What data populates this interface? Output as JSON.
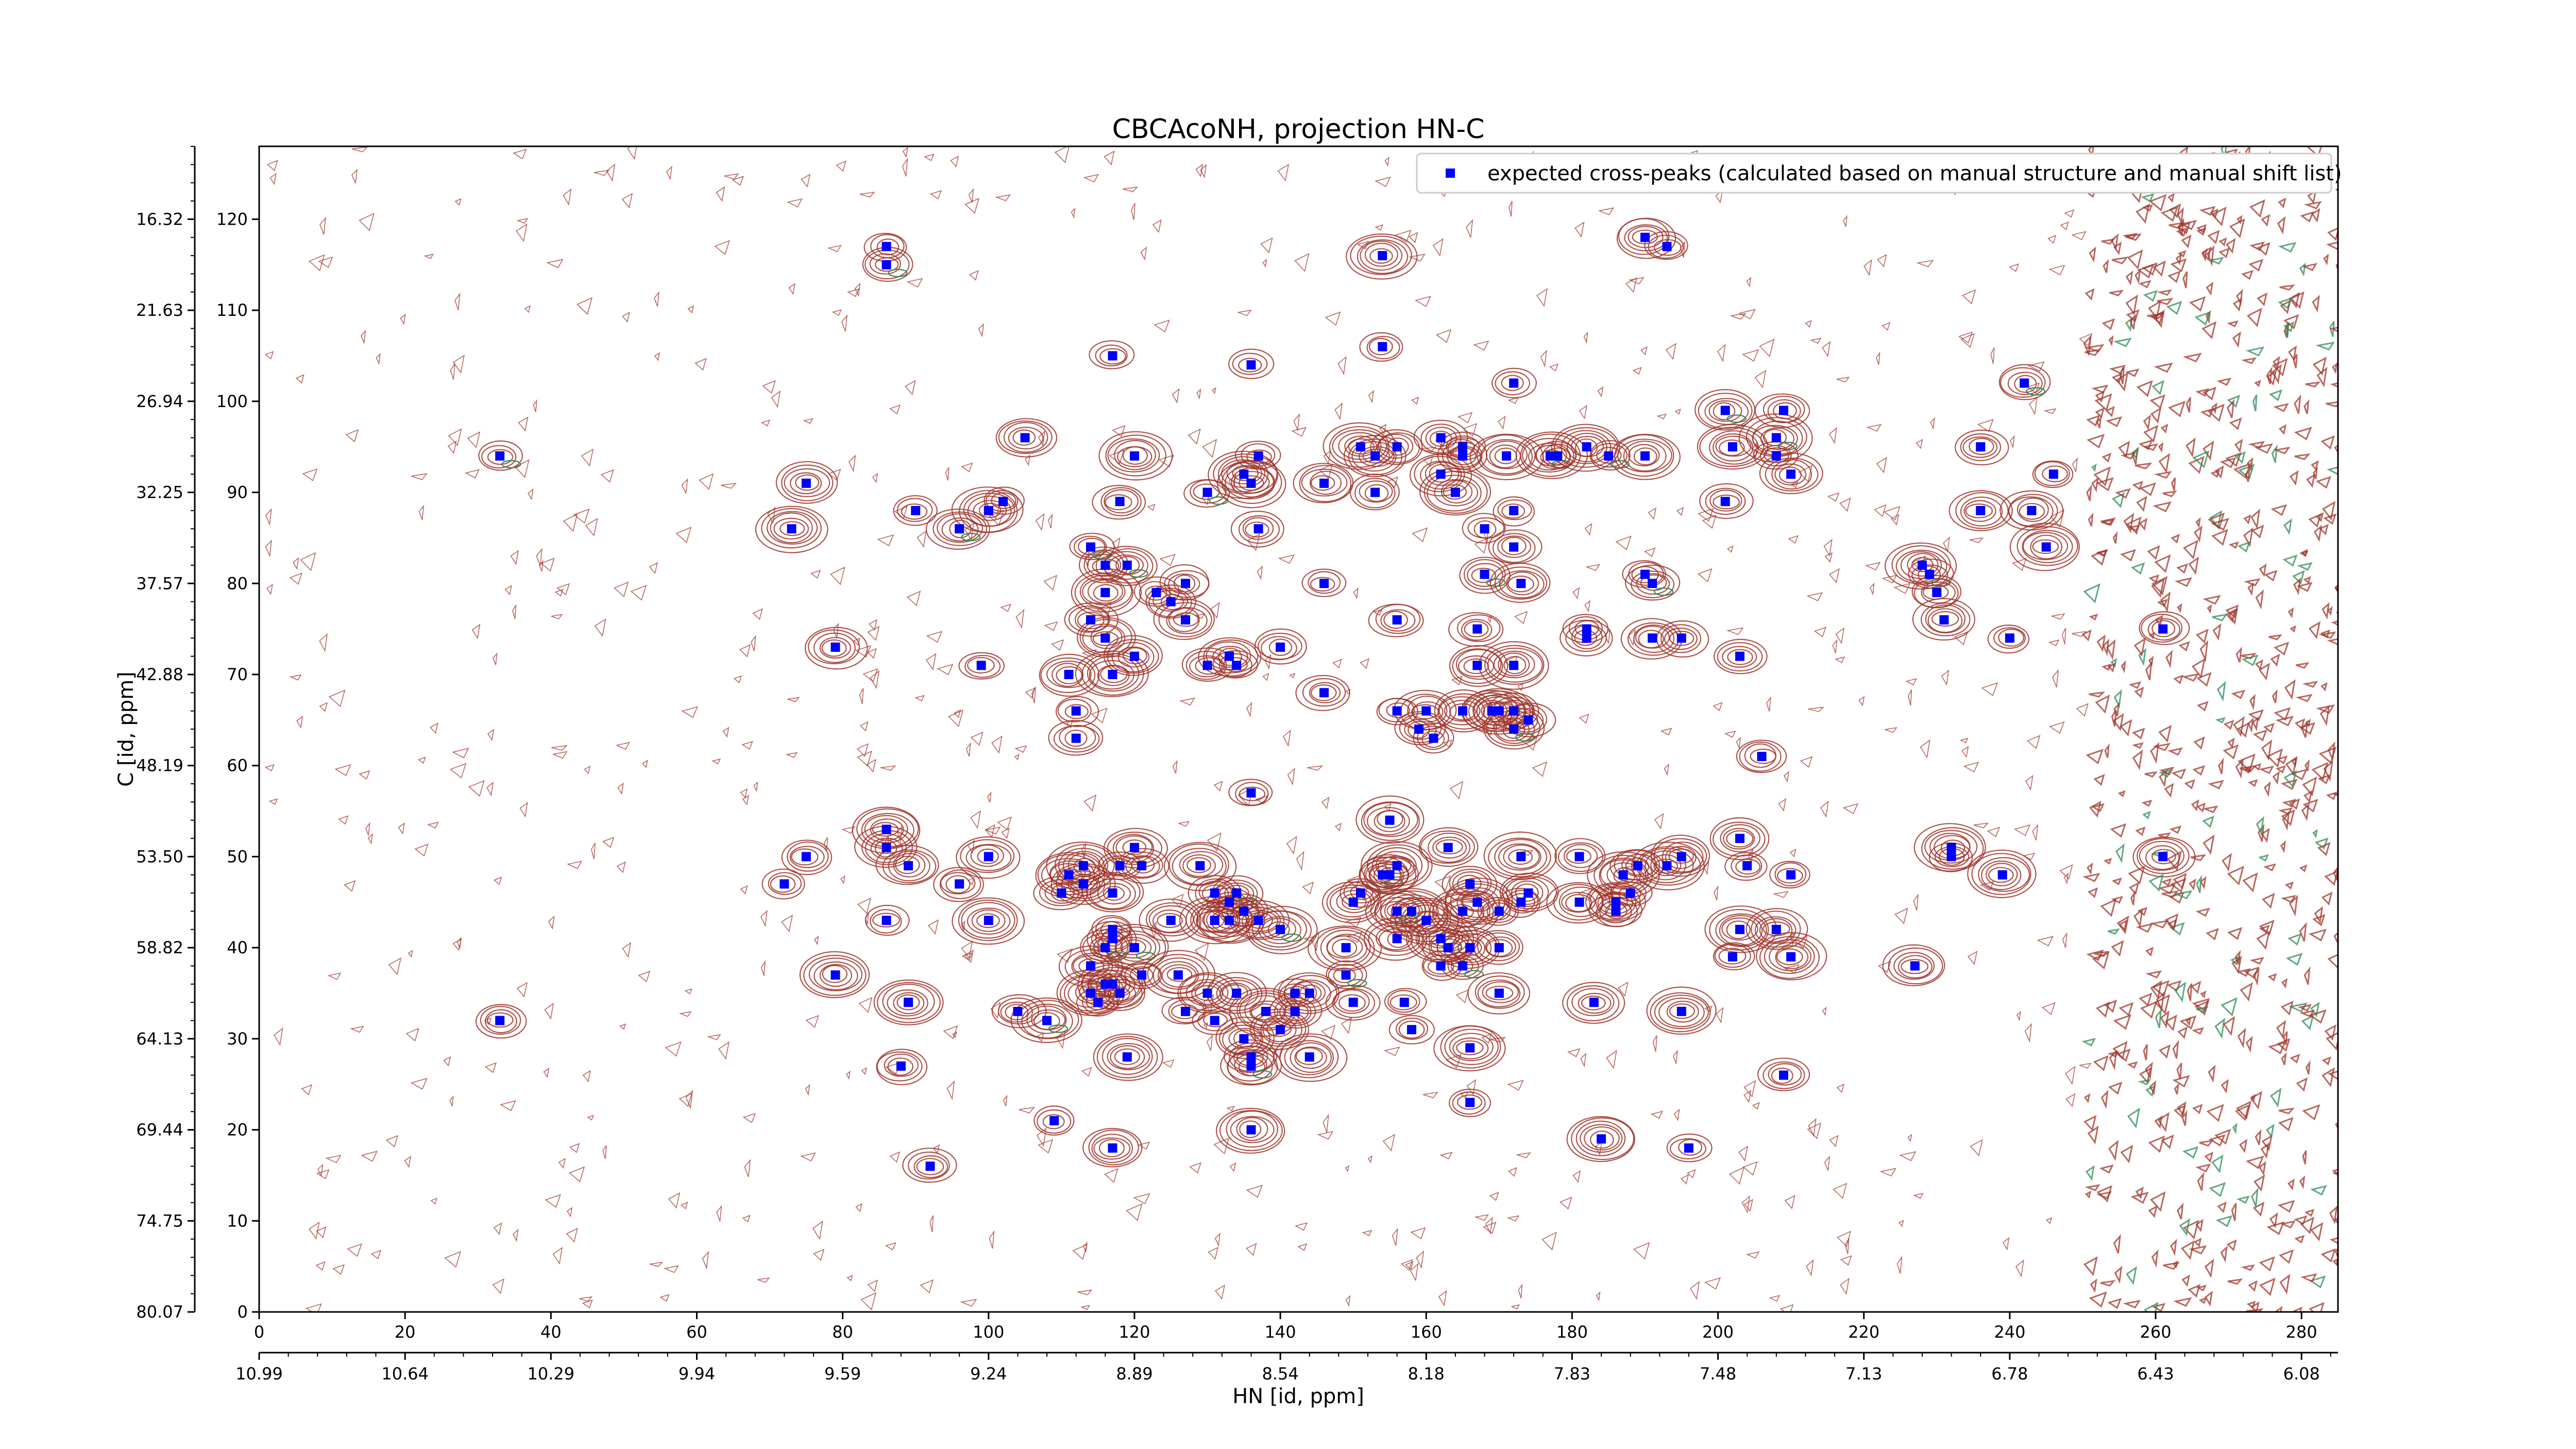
{
  "chart_data": {
    "type": "scatter",
    "title": "CBCAcoNH, projection HN-C",
    "xlabel": "HN [id, ppm]",
    "ylabel": "C [id, ppm]",
    "xlim": [
      0,
      285
    ],
    "ylim": [
      0,
      128
    ],
    "x_ticks": [
      "0",
      "20",
      "40",
      "60",
      "80",
      "100",
      "120",
      "140",
      "160",
      "180",
      "200",
      "220",
      "240",
      "260",
      "280"
    ],
    "x_ppm_ticks": [
      "10.99",
      "10.64",
      "10.29",
      "9.94",
      "9.59",
      "9.24",
      "8.89",
      "8.54",
      "8.18",
      "7.83",
      "7.48",
      "7.13",
      "6.78",
      "6.43",
      "6.08"
    ],
    "y_ticks": [
      "0",
      "10",
      "20",
      "30",
      "40",
      "50",
      "60",
      "70",
      "80",
      "90",
      "100",
      "110",
      "120"
    ],
    "y_ppm_ticks": [
      "80.07",
      "74.75",
      "69.44",
      "64.13",
      "58.82",
      "53.50",
      "48.19",
      "42.88",
      "37.57",
      "32.25",
      "26.94",
      "21.63",
      "16.32"
    ],
    "legend": {
      "position": "top-right",
      "label": "expected cross-peaks (calculated based on manual structure and manual shift list)"
    },
    "grid": false,
    "colors": {
      "peak": "#0000ff",
      "contour_positive": "#a0342a",
      "contour_negative": "#2e8b57"
    },
    "series": [
      {
        "name": "expected cross-peaks (calculated based on manual structure and manual shift list)",
        "points": [
          [
            33,
            94
          ],
          [
            33,
            32
          ],
          [
            75,
            91
          ],
          [
            73,
            86
          ],
          [
            72,
            47
          ],
          [
            75,
            50
          ],
          [
            79,
            73
          ],
          [
            79,
            37
          ],
          [
            86,
            117
          ],
          [
            86,
            115
          ],
          [
            86,
            51
          ],
          [
            86,
            53
          ],
          [
            86,
            43
          ],
          [
            88,
            27
          ],
          [
            89,
            49
          ],
          [
            89,
            34
          ],
          [
            90,
            88
          ],
          [
            92,
            16
          ],
          [
            96,
            86
          ],
          [
            100,
            88
          ],
          [
            102,
            89
          ],
          [
            96,
            47
          ],
          [
            100,
            50
          ],
          [
            100,
            43
          ],
          [
            99,
            71
          ],
          [
            104,
            33
          ],
          [
            105,
            96
          ],
          [
            108,
            32
          ],
          [
            109,
            21
          ],
          [
            110,
            46
          ],
          [
            111,
            70
          ],
          [
            111,
            48
          ],
          [
            112,
            66
          ],
          [
            112,
            63
          ],
          [
            113,
            47
          ],
          [
            113,
            49
          ],
          [
            114,
            84
          ],
          [
            114,
            76
          ],
          [
            114,
            38
          ],
          [
            114,
            35
          ],
          [
            115,
            34
          ],
          [
            116,
            82
          ],
          [
            116,
            74
          ],
          [
            116,
            79
          ],
          [
            116,
            36
          ],
          [
            116,
            40
          ],
          [
            117,
            18
          ],
          [
            117,
            70
          ],
          [
            117,
            42
          ],
          [
            117,
            41
          ],
          [
            117,
            46
          ],
          [
            117,
            36
          ],
          [
            118,
            49
          ],
          [
            118,
            35
          ],
          [
            119,
            82
          ],
          [
            119,
            28
          ],
          [
            117,
            105
          ],
          [
            118,
            89
          ],
          [
            120,
            72
          ],
          [
            120,
            94
          ],
          [
            121,
            37
          ],
          [
            121,
            49
          ],
          [
            120,
            51
          ],
          [
            120,
            40
          ],
          [
            123,
            79
          ],
          [
            125,
            78
          ],
          [
            125,
            43
          ],
          [
            126,
            37
          ],
          [
            127,
            33
          ],
          [
            127,
            80
          ],
          [
            127,
            76
          ],
          [
            129,
            49
          ],
          [
            130,
            90
          ],
          [
            130,
            71
          ],
          [
            130,
            35
          ],
          [
            131,
            43
          ],
          [
            131,
            32
          ],
          [
            131,
            46
          ],
          [
            133,
            72
          ],
          [
            133,
            43
          ],
          [
            133,
            45
          ],
          [
            134,
            46
          ],
          [
            134,
            35
          ],
          [
            135,
            92
          ],
          [
            134,
            71
          ],
          [
            135,
            44
          ],
          [
            135,
            30
          ],
          [
            136,
            91
          ],
          [
            136,
            57
          ],
          [
            136,
            28
          ],
          [
            136,
            27
          ],
          [
            136,
            20
          ],
          [
            136,
            104
          ],
          [
            137,
            86
          ],
          [
            137,
            43
          ],
          [
            138,
            33
          ],
          [
            137,
            94
          ],
          [
            140,
            73
          ],
          [
            140,
            31
          ],
          [
            140,
            42
          ],
          [
            142,
            35
          ],
          [
            142,
            33
          ],
          [
            144,
            35
          ],
          [
            144,
            28
          ],
          [
            146,
            80
          ],
          [
            146,
            68
          ],
          [
            146,
            91
          ],
          [
            149,
            40
          ],
          [
            149,
            37
          ],
          [
            150,
            34
          ],
          [
            150,
            45
          ],
          [
            151,
            95
          ],
          [
            151,
            46
          ],
          [
            153,
            90
          ],
          [
            153,
            94
          ],
          [
            154,
            116
          ],
          [
            154,
            106
          ],
          [
            154,
            48
          ],
          [
            155,
            48
          ],
          [
            155,
            54
          ],
          [
            156,
            66
          ],
          [
            156,
            95
          ],
          [
            156,
            41
          ],
          [
            156,
            49
          ],
          [
            157,
            34
          ],
          [
            156,
            76
          ],
          [
            156,
            44
          ],
          [
            158,
            44
          ],
          [
            158,
            31
          ],
          [
            159,
            64
          ],
          [
            160,
            66
          ],
          [
            160,
            43
          ],
          [
            161,
            63
          ],
          [
            162,
            96
          ],
          [
            162,
            92
          ],
          [
            162,
            41
          ],
          [
            162,
            38
          ],
          [
            163,
            40
          ],
          [
            163,
            51
          ],
          [
            164,
            90
          ],
          [
            165,
            95
          ],
          [
            165,
            94
          ],
          [
            165,
            66
          ],
          [
            165,
            44
          ],
          [
            165,
            38
          ],
          [
            166,
            47
          ],
          [
            166,
            40
          ],
          [
            166,
            29
          ],
          [
            166,
            23
          ],
          [
            167,
            75
          ],
          [
            167,
            71
          ],
          [
            167,
            45
          ],
          [
            168,
            86
          ],
          [
            168,
            81
          ],
          [
            169,
            66
          ],
          [
            170,
            66
          ],
          [
            170,
            44
          ],
          [
            170,
            40
          ],
          [
            170,
            35
          ],
          [
            171,
            94
          ],
          [
            172,
            102
          ],
          [
            172,
            66
          ],
          [
            172,
            64
          ],
          [
            172,
            71
          ],
          [
            172,
            88
          ],
          [
            172,
            84
          ],
          [
            173,
            80
          ],
          [
            173,
            50
          ],
          [
            173,
            45
          ],
          [
            174,
            65
          ],
          [
            174,
            46
          ],
          [
            177,
            94
          ],
          [
            178,
            94
          ],
          [
            181,
            50
          ],
          [
            181,
            45
          ],
          [
            182,
            95
          ],
          [
            182,
            75
          ],
          [
            182,
            74
          ],
          [
            183,
            34
          ],
          [
            184,
            19
          ],
          [
            185,
            94
          ],
          [
            186,
            44
          ],
          [
            186,
            45
          ],
          [
            187,
            48
          ],
          [
            188,
            46
          ],
          [
            189,
            49
          ],
          [
            190,
            118
          ],
          [
            190,
            94
          ],
          [
            190,
            81
          ],
          [
            191,
            80
          ],
          [
            191,
            74
          ],
          [
            193,
            49
          ],
          [
            193,
            117
          ],
          [
            195,
            74
          ],
          [
            195,
            50
          ],
          [
            195,
            33
          ],
          [
            196,
            18
          ],
          [
            201,
            89
          ],
          [
            201,
            99
          ],
          [
            202,
            95
          ],
          [
            202,
            39
          ],
          [
            203,
            72
          ],
          [
            203,
            52
          ],
          [
            203,
            42
          ],
          [
            204,
            49
          ],
          [
            206,
            61
          ],
          [
            208,
            42
          ],
          [
            208,
            96
          ],
          [
            208,
            94
          ],
          [
            209,
            99
          ],
          [
            210,
            92
          ],
          [
            210,
            39
          ],
          [
            210,
            48
          ],
          [
            209,
            26
          ],
          [
            227,
            38
          ],
          [
            228,
            82
          ],
          [
            229,
            81
          ],
          [
            230,
            79
          ],
          [
            231,
            76
          ],
          [
            232,
            51
          ],
          [
            232,
            50
          ],
          [
            236,
            95
          ],
          [
            236,
            88
          ],
          [
            239,
            48
          ],
          [
            240,
            74
          ],
          [
            242,
            102
          ],
          [
            243,
            88
          ],
          [
            245,
            84
          ],
          [
            246,
            92
          ],
          [
            261,
            75
          ],
          [
            261,
            50
          ]
        ]
      }
    ]
  }
}
